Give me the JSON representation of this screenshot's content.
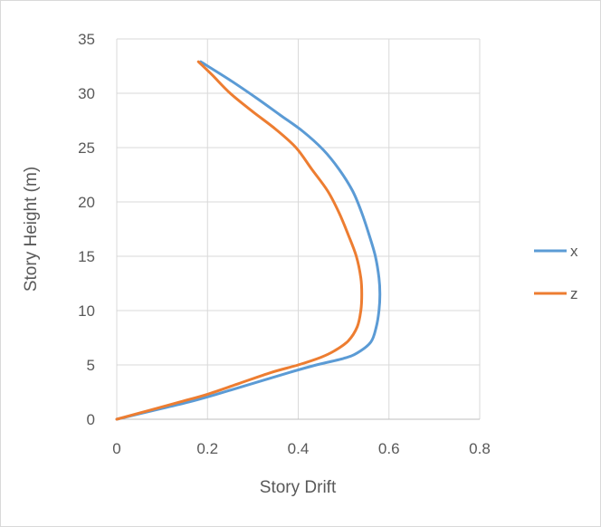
{
  "chart_data": {
    "type": "line",
    "title": "",
    "xlabel": "Story Drift",
    "ylabel": "Story Height (m)",
    "xlim": [
      0,
      0.8
    ],
    "ylim": [
      0,
      35
    ],
    "x_ticks": [
      "0",
      "0.2",
      "0.4",
      "0.6",
      "0.8"
    ],
    "y_ticks": [
      "0",
      "5",
      "10",
      "15",
      "20",
      "25",
      "30",
      "35"
    ],
    "grid": true,
    "legend_position": "right",
    "series": [
      {
        "name": "x",
        "color": "#5b9bd5",
        "points": [
          [
            0,
            0
          ],
          [
            0.08,
            0.8
          ],
          [
            0.16,
            1.6
          ],
          [
            0.22,
            2.3
          ],
          [
            0.3,
            3.3
          ],
          [
            0.38,
            4.3
          ],
          [
            0.44,
            5.0
          ],
          [
            0.5,
            5.6
          ],
          [
            0.53,
            6.1
          ],
          [
            0.56,
            7.1
          ],
          [
            0.572,
            8.5
          ],
          [
            0.578,
            10.0
          ],
          [
            0.58,
            11.5
          ],
          [
            0.578,
            13.0
          ],
          [
            0.57,
            15.0
          ],
          [
            0.556,
            17.0
          ],
          [
            0.54,
            19.0
          ],
          [
            0.52,
            21.0
          ],
          [
            0.49,
            23.0
          ],
          [
            0.455,
            24.8
          ],
          [
            0.41,
            26.5
          ],
          [
            0.36,
            28.0
          ],
          [
            0.31,
            29.5
          ],
          [
            0.25,
            31.2
          ],
          [
            0.185,
            32.9
          ]
        ]
      },
      {
        "name": "z",
        "color": "#ed7d31",
        "points": [
          [
            0,
            0
          ],
          [
            0.07,
            0.8
          ],
          [
            0.14,
            1.6
          ],
          [
            0.2,
            2.3
          ],
          [
            0.27,
            3.3
          ],
          [
            0.34,
            4.3
          ],
          [
            0.4,
            5.0
          ],
          [
            0.45,
            5.7
          ],
          [
            0.48,
            6.3
          ],
          [
            0.51,
            7.2
          ],
          [
            0.53,
            8.5
          ],
          [
            0.538,
            10.0
          ],
          [
            0.54,
            11.5
          ],
          [
            0.538,
            13.0
          ],
          [
            0.528,
            15.0
          ],
          [
            0.51,
            17.0
          ],
          [
            0.49,
            19.0
          ],
          [
            0.465,
            21.0
          ],
          [
            0.43,
            23.0
          ],
          [
            0.395,
            25.0
          ],
          [
            0.35,
            26.7
          ],
          [
            0.3,
            28.3
          ],
          [
            0.25,
            30.0
          ],
          [
            0.21,
            31.7
          ],
          [
            0.18,
            32.9
          ]
        ]
      }
    ]
  }
}
